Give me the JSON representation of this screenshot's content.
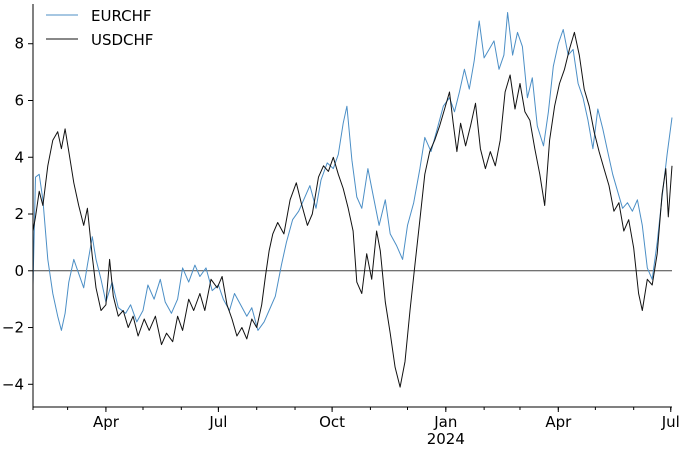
{
  "chart_data": {
    "type": "line",
    "title": "",
    "xlabel": "",
    "ylabel": "",
    "xlim": [
      "2023-02-01",
      "2024-07-02"
    ],
    "ylim": [
      -4.8,
      9.4
    ],
    "grid": false,
    "legend_position": "top-left",
    "reference_line_y": 0,
    "x_ticks": [
      {
        "date": "2023-04-01",
        "label": "Apr",
        "sublabel": ""
      },
      {
        "date": "2023-07-01",
        "label": "Jul",
        "sublabel": ""
      },
      {
        "date": "2023-10-01",
        "label": "Oct",
        "sublabel": ""
      },
      {
        "date": "2024-01-01",
        "label": "Jan",
        "sublabel": "2024"
      },
      {
        "date": "2024-04-01",
        "label": "Apr",
        "sublabel": ""
      },
      {
        "date": "2024-07-01",
        "label": "Jul",
        "sublabel": ""
      }
    ],
    "y_ticks": [
      -4,
      -2,
      0,
      2,
      4,
      6,
      8
    ],
    "series": [
      {
        "name": "EURCHF",
        "color": "#4c8fc6",
        "points": [
          [
            "2023-02-01",
            -0.5
          ],
          [
            "2023-02-03",
            3.3
          ],
          [
            "2023-02-06",
            3.4
          ],
          [
            "2023-02-09",
            2.5
          ],
          [
            "2023-02-13",
            0.4
          ],
          [
            "2023-02-17",
            -0.8
          ],
          [
            "2023-02-21",
            -1.6
          ],
          [
            "2023-02-24",
            -2.1
          ],
          [
            "2023-02-27",
            -1.5
          ],
          [
            "2023-03-02",
            -0.4
          ],
          [
            "2023-03-06",
            0.4
          ],
          [
            "2023-03-10",
            -0.1
          ],
          [
            "2023-03-14",
            -0.6
          ],
          [
            "2023-03-17",
            0.2
          ],
          [
            "2023-03-21",
            1.2
          ],
          [
            "2023-03-24",
            0.4
          ],
          [
            "2023-03-28",
            -0.3
          ],
          [
            "2023-04-01",
            -1.1
          ],
          [
            "2023-04-06",
            -0.4
          ],
          [
            "2023-04-11",
            -1.3
          ],
          [
            "2023-04-17",
            -1.5
          ],
          [
            "2023-04-21",
            -1.2
          ],
          [
            "2023-04-26",
            -1.8
          ],
          [
            "2023-05-01",
            -1.4
          ],
          [
            "2023-05-05",
            -0.5
          ],
          [
            "2023-05-10",
            -1.0
          ],
          [
            "2023-05-15",
            -0.3
          ],
          [
            "2023-05-19",
            -1.1
          ],
          [
            "2023-05-24",
            -1.5
          ],
          [
            "2023-05-29",
            -1.0
          ],
          [
            "2023-06-02",
            0.1
          ],
          [
            "2023-06-07",
            -0.4
          ],
          [
            "2023-06-12",
            0.2
          ],
          [
            "2023-06-16",
            -0.2
          ],
          [
            "2023-06-21",
            0.1
          ],
          [
            "2023-06-26",
            -0.7
          ],
          [
            "2023-07-01",
            -0.5
          ],
          [
            "2023-07-05",
            -1.0
          ],
          [
            "2023-07-10",
            -1.4
          ],
          [
            "2023-07-14",
            -0.8
          ],
          [
            "2023-07-19",
            -1.2
          ],
          [
            "2023-07-24",
            -1.6
          ],
          [
            "2023-07-28",
            -1.3
          ],
          [
            "2023-08-02",
            -2.1
          ],
          [
            "2023-08-07",
            -1.8
          ],
          [
            "2023-08-11",
            -1.4
          ],
          [
            "2023-08-16",
            -0.9
          ],
          [
            "2023-08-21",
            0.2
          ],
          [
            "2023-08-25",
            1.0
          ],
          [
            "2023-08-30",
            1.8
          ],
          [
            "2023-09-04",
            2.1
          ],
          [
            "2023-09-08",
            2.5
          ],
          [
            "2023-09-13",
            3.0
          ],
          [
            "2023-09-18",
            2.2
          ],
          [
            "2023-09-22",
            3.2
          ],
          [
            "2023-09-27",
            3.8
          ],
          [
            "2023-10-02",
            3.6
          ],
          [
            "2023-10-06",
            4.1
          ],
          [
            "2023-10-10",
            5.2
          ],
          [
            "2023-10-13",
            5.8
          ],
          [
            "2023-10-17",
            3.9
          ],
          [
            "2023-10-21",
            2.6
          ],
          [
            "2023-10-25",
            2.2
          ],
          [
            "2023-10-30",
            3.6
          ],
          [
            "2023-11-03",
            2.7
          ],
          [
            "2023-11-08",
            1.6
          ],
          [
            "2023-11-13",
            2.5
          ],
          [
            "2023-11-17",
            1.3
          ],
          [
            "2023-11-22",
            0.9
          ],
          [
            "2023-11-27",
            0.4
          ],
          [
            "2023-12-01",
            1.6
          ],
          [
            "2023-12-06",
            2.4
          ],
          [
            "2023-12-11",
            3.6
          ],
          [
            "2023-12-15",
            4.7
          ],
          [
            "2023-12-20",
            4.2
          ],
          [
            "2023-12-25",
            5.0
          ],
          [
            "2023-12-30",
            5.8
          ],
          [
            "2024-01-04",
            6.1
          ],
          [
            "2024-01-08",
            5.6
          ],
          [
            "2024-01-12",
            6.3
          ],
          [
            "2024-01-16",
            7.1
          ],
          [
            "2024-01-20",
            6.4
          ],
          [
            "2024-01-24",
            7.4
          ],
          [
            "2024-01-28",
            8.8
          ],
          [
            "2024-02-01",
            7.5
          ],
          [
            "2024-02-05",
            7.8
          ],
          [
            "2024-02-09",
            8.1
          ],
          [
            "2024-02-13",
            7.1
          ],
          [
            "2024-02-17",
            7.6
          ],
          [
            "2024-02-20",
            9.1
          ],
          [
            "2024-02-24",
            7.6
          ],
          [
            "2024-02-28",
            8.4
          ],
          [
            "2024-03-03",
            7.9
          ],
          [
            "2024-03-07",
            6.1
          ],
          [
            "2024-03-11",
            6.8
          ],
          [
            "2024-03-15",
            5.1
          ],
          [
            "2024-03-20",
            4.4
          ],
          [
            "2024-03-24",
            5.6
          ],
          [
            "2024-03-28",
            7.2
          ],
          [
            "2024-04-01",
            8.0
          ],
          [
            "2024-04-05",
            8.5
          ],
          [
            "2024-04-09",
            7.6
          ],
          [
            "2024-04-13",
            7.8
          ],
          [
            "2024-04-17",
            6.6
          ],
          [
            "2024-04-21",
            6.1
          ],
          [
            "2024-04-25",
            5.3
          ],
          [
            "2024-04-29",
            4.3
          ],
          [
            "2024-05-03",
            5.7
          ],
          [
            "2024-05-07",
            5.0
          ],
          [
            "2024-05-11",
            4.2
          ],
          [
            "2024-05-15",
            3.4
          ],
          [
            "2024-05-19",
            2.8
          ],
          [
            "2024-05-23",
            2.2
          ],
          [
            "2024-05-27",
            2.4
          ],
          [
            "2024-05-31",
            2.1
          ],
          [
            "2024-06-04",
            2.5
          ],
          [
            "2024-06-08",
            1.6
          ],
          [
            "2024-06-12",
            0.1
          ],
          [
            "2024-06-16",
            -0.3
          ],
          [
            "2024-06-20",
            1.0
          ],
          [
            "2024-06-24",
            2.6
          ],
          [
            "2024-06-28",
            4.1
          ],
          [
            "2024-07-02",
            5.4
          ]
        ]
      },
      {
        "name": "USDCHF",
        "color": "#111111",
        "points": [
          [
            "2023-02-01",
            1.4
          ],
          [
            "2023-02-03",
            1.9
          ],
          [
            "2023-02-06",
            2.8
          ],
          [
            "2023-02-09",
            2.3
          ],
          [
            "2023-02-13",
            3.7
          ],
          [
            "2023-02-17",
            4.6
          ],
          [
            "2023-02-21",
            4.9
          ],
          [
            "2023-02-24",
            4.3
          ],
          [
            "2023-02-27",
            5.0
          ],
          [
            "2023-03-02",
            4.2
          ],
          [
            "2023-03-06",
            3.1
          ],
          [
            "2023-03-10",
            2.3
          ],
          [
            "2023-03-14",
            1.6
          ],
          [
            "2023-03-17",
            2.2
          ],
          [
            "2023-03-21",
            0.5
          ],
          [
            "2023-03-24",
            -0.6
          ],
          [
            "2023-03-28",
            -1.4
          ],
          [
            "2023-04-01",
            -1.2
          ],
          [
            "2023-04-04",
            0.4
          ],
          [
            "2023-04-07",
            -0.9
          ],
          [
            "2023-04-11",
            -1.6
          ],
          [
            "2023-04-15",
            -1.4
          ],
          [
            "2023-04-19",
            -2.0
          ],
          [
            "2023-04-23",
            -1.6
          ],
          [
            "2023-04-27",
            -2.3
          ],
          [
            "2023-05-02",
            -1.7
          ],
          [
            "2023-05-06",
            -2.1
          ],
          [
            "2023-05-11",
            -1.6
          ],
          [
            "2023-05-16",
            -2.6
          ],
          [
            "2023-05-20",
            -2.2
          ],
          [
            "2023-05-25",
            -2.5
          ],
          [
            "2023-05-29",
            -1.6
          ],
          [
            "2023-06-02",
            -2.1
          ],
          [
            "2023-06-07",
            -1.0
          ],
          [
            "2023-06-11",
            -1.4
          ],
          [
            "2023-06-16",
            -0.8
          ],
          [
            "2023-06-20",
            -1.4
          ],
          [
            "2023-06-25",
            -0.3
          ],
          [
            "2023-06-30",
            -0.6
          ],
          [
            "2023-07-04",
            -0.2
          ],
          [
            "2023-07-08",
            -1.2
          ],
          [
            "2023-07-12",
            -1.7
          ],
          [
            "2023-07-16",
            -2.3
          ],
          [
            "2023-07-20",
            -2.0
          ],
          [
            "2023-07-24",
            -2.4
          ],
          [
            "2023-07-28",
            -1.7
          ],
          [
            "2023-08-01",
            -2.0
          ],
          [
            "2023-08-05",
            -1.2
          ],
          [
            "2023-08-08",
            -0.2
          ],
          [
            "2023-08-11",
            0.7
          ],
          [
            "2023-08-14",
            1.3
          ],
          [
            "2023-08-18",
            1.7
          ],
          [
            "2023-08-23",
            1.3
          ],
          [
            "2023-08-28",
            2.5
          ],
          [
            "2023-09-02",
            3.1
          ],
          [
            "2023-09-06",
            2.4
          ],
          [
            "2023-09-11",
            1.6
          ],
          [
            "2023-09-15",
            2.0
          ],
          [
            "2023-09-20",
            3.3
          ],
          [
            "2023-09-24",
            3.7
          ],
          [
            "2023-09-28",
            3.5
          ],
          [
            "2023-10-02",
            4.0
          ],
          [
            "2023-10-06",
            3.4
          ],
          [
            "2023-10-10",
            2.9
          ],
          [
            "2023-10-14",
            2.2
          ],
          [
            "2023-10-18",
            1.4
          ],
          [
            "2023-10-21",
            -0.4
          ],
          [
            "2023-10-25",
            -0.8
          ],
          [
            "2023-10-29",
            0.6
          ],
          [
            "2023-11-02",
            -0.3
          ],
          [
            "2023-11-06",
            1.4
          ],
          [
            "2023-11-09",
            0.7
          ],
          [
            "2023-11-13",
            -1.1
          ],
          [
            "2023-11-17",
            -2.2
          ],
          [
            "2023-11-21",
            -3.4
          ],
          [
            "2023-11-25",
            -4.1
          ],
          [
            "2023-11-29",
            -3.2
          ],
          [
            "2023-12-03",
            -1.4
          ],
          [
            "2023-12-07",
            0.2
          ],
          [
            "2023-12-11",
            1.8
          ],
          [
            "2023-12-15",
            3.4
          ],
          [
            "2023-12-19",
            4.2
          ],
          [
            "2023-12-23",
            4.6
          ],
          [
            "2023-12-27",
            5.1
          ],
          [
            "2023-12-31",
            5.7
          ],
          [
            "2024-01-04",
            6.3
          ],
          [
            "2024-01-07",
            5.2
          ],
          [
            "2024-01-10",
            4.2
          ],
          [
            "2024-01-13",
            5.2
          ],
          [
            "2024-01-17",
            4.4
          ],
          [
            "2024-01-21",
            5.1
          ],
          [
            "2024-01-25",
            5.9
          ],
          [
            "2024-01-29",
            4.3
          ],
          [
            "2024-02-02",
            3.6
          ],
          [
            "2024-02-06",
            4.2
          ],
          [
            "2024-02-10",
            3.7
          ],
          [
            "2024-02-14",
            4.6
          ],
          [
            "2024-02-18",
            6.3
          ],
          [
            "2024-02-22",
            6.9
          ],
          [
            "2024-02-26",
            5.7
          ],
          [
            "2024-03-01",
            6.6
          ],
          [
            "2024-03-05",
            5.6
          ],
          [
            "2024-03-09",
            5.3
          ],
          [
            "2024-03-13",
            4.3
          ],
          [
            "2024-03-17",
            3.4
          ],
          [
            "2024-03-21",
            2.3
          ],
          [
            "2024-03-25",
            4.6
          ],
          [
            "2024-03-29",
            5.8
          ],
          [
            "2024-04-02",
            6.6
          ],
          [
            "2024-04-06",
            7.1
          ],
          [
            "2024-04-10",
            7.8
          ],
          [
            "2024-04-14",
            8.4
          ],
          [
            "2024-04-18",
            7.6
          ],
          [
            "2024-04-22",
            6.4
          ],
          [
            "2024-04-26",
            5.8
          ],
          [
            "2024-04-30",
            4.9
          ],
          [
            "2024-05-04",
            4.2
          ],
          [
            "2024-05-08",
            3.6
          ],
          [
            "2024-05-12",
            3.0
          ],
          [
            "2024-05-16",
            2.1
          ],
          [
            "2024-05-20",
            2.4
          ],
          [
            "2024-05-24",
            1.4
          ],
          [
            "2024-05-28",
            1.8
          ],
          [
            "2024-06-01",
            0.8
          ],
          [
            "2024-06-05",
            -0.8
          ],
          [
            "2024-06-08",
            -1.4
          ],
          [
            "2024-06-12",
            -0.3
          ],
          [
            "2024-06-16",
            -0.5
          ],
          [
            "2024-06-20",
            0.6
          ],
          [
            "2024-06-24",
            2.7
          ],
          [
            "2024-06-27",
            3.6
          ],
          [
            "2024-06-29",
            1.9
          ],
          [
            "2024-07-02",
            3.7
          ]
        ]
      }
    ]
  }
}
